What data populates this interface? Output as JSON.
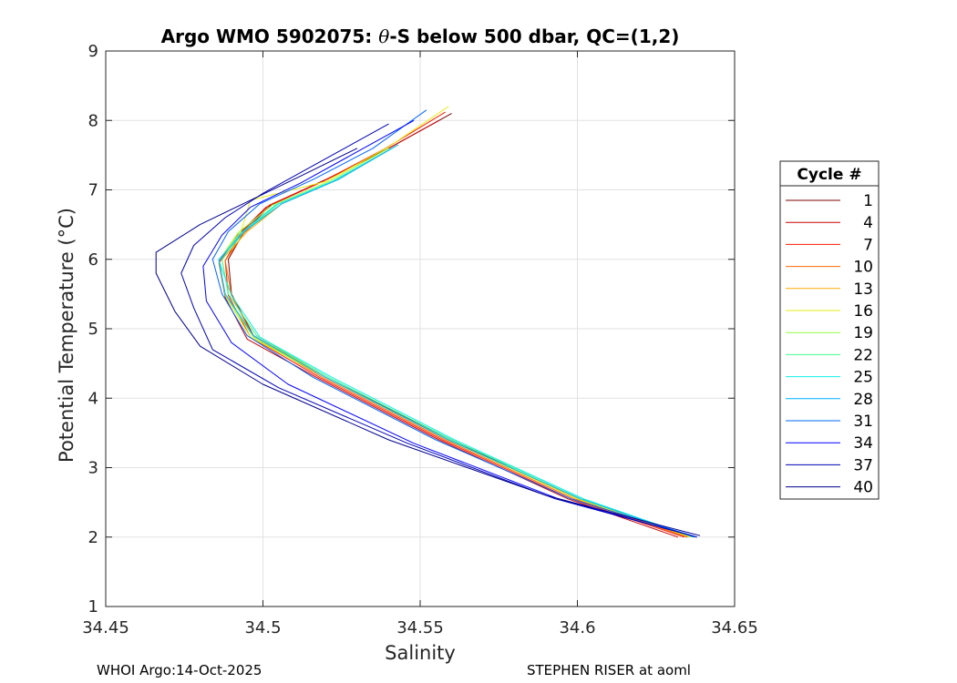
{
  "chart_data": {
    "type": "line",
    "title_prefix": "Argo WMO 5902075: ",
    "title_theta": "θ",
    "title_suffix": "-S below 500 dbar,  QC=(1,2)",
    "xlabel": "Salinity",
    "ylabel": "Potential Temperature (°C)",
    "xlim": [
      34.45,
      34.65
    ],
    "ylim": [
      1,
      9
    ],
    "xticks": [
      34.45,
      34.5,
      34.55,
      34.6,
      34.65
    ],
    "xtick_labels": [
      "34.45",
      "34.5",
      "34.55",
      "34.6",
      "34.65"
    ],
    "yticks": [
      1,
      2,
      3,
      4,
      5,
      6,
      7,
      8,
      9
    ],
    "ytick_labels": [
      "1",
      "2",
      "3",
      "4",
      "5",
      "6",
      "7",
      "8",
      "9"
    ],
    "grid": true,
    "legend": {
      "title": "Cycle #",
      "placement": "right-outside",
      "entries": [
        {
          "label": "1",
          "color": "#7f0000"
        },
        {
          "label": "4",
          "color": "#c80000"
        },
        {
          "label": "7",
          "color": "#ff1a00"
        },
        {
          "label": "10",
          "color": "#ff6a00"
        },
        {
          "label": "13",
          "color": "#ffaa00"
        },
        {
          "label": "16",
          "color": "#e6ee10"
        },
        {
          "label": "19",
          "color": "#90ff40"
        },
        {
          "label": "22",
          "color": "#40ff90"
        },
        {
          "label": "25",
          "color": "#10f0e6"
        },
        {
          "label": "28",
          "color": "#00b4ff"
        },
        {
          "label": "31",
          "color": "#0064ff"
        },
        {
          "label": "34",
          "color": "#0000ff"
        },
        {
          "label": "37",
          "color": "#0000b4"
        },
        {
          "label": "40",
          "color": "#00008f"
        }
      ]
    },
    "series": [
      {
        "name": "1",
        "color": "#7f0000",
        "x": [
          34.56,
          34.54,
          34.52,
          34.503,
          34.494,
          34.489,
          34.49,
          34.497,
          34.52,
          34.56,
          34.6,
          34.635
        ],
        "y": [
          8.1,
          7.6,
          7.15,
          6.8,
          6.4,
          6.0,
          5.5,
          4.9,
          4.3,
          3.4,
          2.55,
          2.0
        ]
      },
      {
        "name": "4",
        "color": "#c80000",
        "x": [
          34.556,
          34.538,
          34.518,
          34.501,
          34.492,
          34.486,
          34.488,
          34.495,
          34.517,
          34.556,
          34.597,
          34.632
        ],
        "y": [
          8.0,
          7.55,
          7.1,
          6.75,
          6.35,
          5.95,
          5.45,
          4.85,
          4.3,
          3.4,
          2.55,
          2.0
        ]
      },
      {
        "name": "7",
        "color": "#ff1a00",
        "x": [
          34.558,
          34.539,
          34.519,
          34.502,
          34.493,
          34.488,
          34.489,
          34.496,
          34.518,
          34.557,
          34.598,
          34.634
        ],
        "y": [
          8.12,
          7.6,
          7.12,
          6.78,
          6.38,
          5.98,
          5.48,
          4.88,
          4.3,
          3.4,
          2.55,
          2.0
        ]
      },
      {
        "name": "10",
        "color": "#ff6a00",
        "x": [
          34.541,
          34.522,
          34.504,
          34.494,
          34.488,
          34.49,
          34.497,
          34.519,
          34.558,
          34.599,
          34.635
        ],
        "y": [
          7.6,
          7.12,
          6.78,
          6.38,
          5.98,
          5.48,
          4.88,
          4.3,
          3.4,
          2.55,
          2.0
        ]
      },
      {
        "name": "13",
        "color": "#ffaa00",
        "x": [
          34.543,
          34.524,
          34.506,
          34.495,
          34.487,
          34.489,
          34.498,
          34.52,
          34.559,
          34.6,
          34.636
        ],
        "y": [
          7.65,
          7.15,
          6.8,
          6.4,
          6.0,
          5.5,
          4.9,
          4.3,
          3.4,
          2.55,
          2.0
        ]
      },
      {
        "name": "16",
        "color": "#e6ee10",
        "x": [
          34.559,
          34.54,
          34.52,
          34.496,
          34.493,
          34.486,
          34.488,
          34.496,
          34.52,
          34.559,
          34.6,
          34.636
        ],
        "y": [
          8.2,
          7.62,
          7.12,
          6.85,
          6.4,
          5.98,
          5.48,
          4.88,
          4.3,
          3.4,
          2.55,
          2.0
        ]
      },
      {
        "name": "19",
        "color": "#90ff40",
        "x": [
          34.54,
          34.521,
          34.503,
          34.492,
          34.486,
          34.488,
          34.497,
          34.52,
          34.559,
          34.601,
          34.637
        ],
        "y": [
          7.6,
          7.12,
          6.78,
          6.38,
          5.98,
          5.48,
          4.88,
          4.3,
          3.4,
          2.55,
          2.0
        ]
      },
      {
        "name": "22",
        "color": "#40ff90",
        "x": [
          34.542,
          34.523,
          34.505,
          34.494,
          34.487,
          34.489,
          34.498,
          34.521,
          34.56,
          34.602,
          34.637
        ],
        "y": [
          7.62,
          7.14,
          6.8,
          6.4,
          6.0,
          5.5,
          4.9,
          4.3,
          3.4,
          2.55,
          2.0
        ]
      },
      {
        "name": "25",
        "color": "#10f0e6",
        "x": [
          34.541,
          34.522,
          34.504,
          34.493,
          34.486,
          34.49,
          34.499,
          34.522,
          34.561,
          34.602,
          34.637
        ],
        "y": [
          7.6,
          7.12,
          6.78,
          6.38,
          5.98,
          5.48,
          4.88,
          4.3,
          3.4,
          2.55,
          2.0
        ]
      },
      {
        "name": "28",
        "color": "#00b4ff",
        "x": [
          34.543,
          34.524,
          34.506,
          34.494,
          34.486,
          34.488,
          34.497,
          34.52,
          34.559,
          34.601,
          34.637
        ],
        "y": [
          7.65,
          7.15,
          6.8,
          6.4,
          6.0,
          5.5,
          4.9,
          4.3,
          3.4,
          2.55,
          2.0
        ]
      },
      {
        "name": "31",
        "color": "#0064ff",
        "x": [
          34.552,
          34.535,
          34.516,
          34.499,
          34.489,
          34.484,
          34.487,
          34.495,
          34.516,
          34.555,
          34.598,
          34.638
        ],
        "y": [
          8.15,
          7.6,
          7.15,
          6.8,
          6.4,
          6.0,
          5.5,
          4.9,
          4.3,
          3.4,
          2.55,
          2.0
        ]
      },
      {
        "name": "34",
        "color": "#0000ff",
        "x": [
          34.548,
          34.53,
          34.512,
          34.496,
          34.487,
          34.481,
          34.482,
          34.49,
          34.508,
          34.548,
          34.594,
          34.638
        ],
        "y": [
          8.0,
          7.55,
          7.1,
          6.75,
          6.35,
          5.9,
          5.4,
          4.8,
          4.2,
          3.35,
          2.55,
          2.0
        ]
      },
      {
        "name": "37",
        "color": "#0000b4",
        "x": [
          34.54,
          34.52,
          34.5,
          34.488,
          34.478,
          34.474,
          34.478,
          34.484,
          34.505,
          34.546,
          34.593,
          34.638
        ],
        "y": [
          7.95,
          7.45,
          6.95,
          6.6,
          6.2,
          5.8,
          5.3,
          4.7,
          4.15,
          3.35,
          2.55,
          2.0
        ]
      },
      {
        "name": "40",
        "color": "#00008f",
        "x": [
          34.53,
          34.512,
          34.496,
          34.48,
          34.466,
          34.466,
          34.472,
          34.48,
          34.5,
          34.54,
          34.59,
          34.639
        ],
        "y": [
          7.6,
          7.2,
          6.85,
          6.5,
          6.1,
          5.8,
          5.25,
          4.75,
          4.2,
          3.4,
          2.6,
          2.02
        ]
      }
    ]
  },
  "footer": {
    "left": "WHOI Argo:14-Oct-2025",
    "right": "STEPHEN RISER at aoml"
  }
}
